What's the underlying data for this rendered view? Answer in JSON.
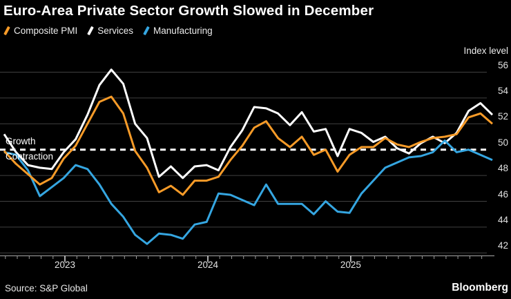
{
  "title": "Euro-Area Private Sector Growth Slowed in December",
  "legend": [
    {
      "label": "Composite PMI",
      "color": "#F79B28"
    },
    {
      "label": "Services",
      "color": "#FFFFFF"
    },
    {
      "label": "Manufacturing",
      "color": "#35A6E1"
    }
  ],
  "axes": {
    "y_title": "Index level",
    "y_ticks": [
      56,
      54,
      52,
      50,
      48,
      46,
      44,
      42
    ],
    "x_ticks": [
      "2023",
      "2024",
      "2025"
    ]
  },
  "threshold": {
    "value": 50,
    "above_label": "Growth",
    "below_label": "Contraction"
  },
  "source": "Source: S&P Global",
  "brand": "Bloomberg",
  "colors": {
    "background": "#000000",
    "grid": "#414141",
    "axis": "#ABABAB",
    "tick": "#9A9A9A",
    "threshold_line": "#FFFFFF",
    "text": "#FFFFFF"
  },
  "chart_data": {
    "type": "line",
    "title": "Euro-Area Private Sector Growth Slowed in December",
    "xlabel": "",
    "ylabel": "Index level",
    "ylim": [
      41.5,
      56.8
    ],
    "yticks": [
      42,
      44,
      46,
      48,
      50,
      52,
      54,
      56
    ],
    "grid": "horizontal",
    "legend_position": "top",
    "threshold": 50,
    "threshold_labels": {
      "above": "Growth",
      "below": "Contraction"
    },
    "frequency": "monthly",
    "x_start": "2022-07",
    "x_end": "2025-12",
    "year_tick_labels": [
      "2023",
      "2024",
      "2025"
    ],
    "months": [
      "2022-07",
      "2022-08",
      "2022-09",
      "2022-10",
      "2022-11",
      "2022-12",
      "2023-01",
      "2023-02",
      "2023-03",
      "2023-04",
      "2023-05",
      "2023-06",
      "2023-07",
      "2023-08",
      "2023-09",
      "2023-10",
      "2023-11",
      "2023-12",
      "2024-01",
      "2024-02",
      "2024-03",
      "2024-04",
      "2024-05",
      "2024-06",
      "2024-07",
      "2024-08",
      "2024-09",
      "2024-10",
      "2024-11",
      "2024-12",
      "2025-01",
      "2025-02",
      "2025-03",
      "2025-04",
      "2025-05",
      "2025-06",
      "2025-07",
      "2025-08",
      "2025-09",
      "2025-10",
      "2025-11",
      "2025-12"
    ],
    "series": [
      {
        "name": "Composite PMI",
        "color": "#F79B28",
        "values": [
          49.9,
          48.9,
          48.1,
          47.3,
          47.8,
          49.3,
          50.3,
          52.0,
          53.7,
          54.1,
          52.8,
          49.9,
          48.6,
          46.7,
          47.2,
          46.5,
          47.6,
          47.6,
          47.9,
          49.2,
          50.3,
          51.7,
          52.2,
          50.9,
          50.2,
          51.0,
          49.6,
          50.0,
          48.3,
          49.6,
          50.2,
          50.2,
          50.9,
          50.4,
          50.2,
          50.6,
          50.9,
          51.0,
          51.2,
          52.5,
          52.8,
          52.0
        ]
      },
      {
        "name": "Services",
        "color": "#FFFFFF",
        "values": [
          51.2,
          49.8,
          48.8,
          48.6,
          48.5,
          49.8,
          50.8,
          52.7,
          55.0,
          56.2,
          55.1,
          52.0,
          50.9,
          47.9,
          48.7,
          47.8,
          48.7,
          48.8,
          48.4,
          50.2,
          51.5,
          53.3,
          53.2,
          52.8,
          51.9,
          52.9,
          51.4,
          51.6,
          49.5,
          51.6,
          51.3,
          50.6,
          51.0,
          50.1,
          49.7,
          50.5,
          51.0,
          50.5,
          51.3,
          53.0,
          53.6,
          52.7
        ]
      },
      {
        "name": "Manufacturing",
        "color": "#35A6E1",
        "values": [
          49.8,
          49.6,
          48.4,
          46.4,
          47.1,
          47.8,
          48.8,
          48.5,
          47.3,
          45.8,
          44.8,
          43.4,
          42.7,
          43.5,
          43.4,
          43.1,
          44.2,
          44.4,
          46.6,
          46.5,
          46.1,
          45.7,
          47.3,
          45.8,
          45.8,
          45.8,
          45.0,
          46.0,
          45.2,
          45.1,
          46.6,
          47.6,
          48.6,
          49.0,
          49.4,
          49.5,
          49.8,
          50.7,
          49.8,
          50.0,
          49.6,
          49.2
        ]
      }
    ]
  }
}
